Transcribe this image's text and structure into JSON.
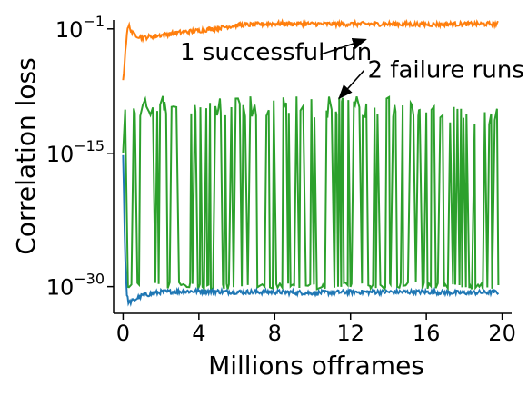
{
  "chart_data": {
    "type": "line",
    "xlabel": "Millions offrames",
    "ylabel": "Correlation loss",
    "xlim": [
      -0.5,
      20.5
    ],
    "yscale": "log",
    "ylim_exp": [
      -33,
      0
    ],
    "x_ticks": [
      {
        "value": 0,
        "label": "0"
      },
      {
        "value": 4,
        "label": "4"
      },
      {
        "value": 8,
        "label": "8"
      },
      {
        "value": 12,
        "label": "12"
      },
      {
        "value": 16,
        "label": "16"
      },
      {
        "value": 20,
        "label": "20"
      }
    ],
    "y_ticks": [
      {
        "exp": -1,
        "base": "10",
        "sup": "−1"
      },
      {
        "exp": -15,
        "base": "10",
        "sup": "−15"
      },
      {
        "exp": -30,
        "base": "10",
        "sup": "−30"
      }
    ],
    "grid": false,
    "series": [
      {
        "color": "#ff7f0e",
        "x": [
          0.0,
          0.1,
          0.2,
          0.3,
          0.5,
          1,
          2,
          3,
          4,
          6,
          8,
          10,
          12,
          14,
          16,
          18,
          19.8
        ],
        "log10_y": [
          -7,
          -4,
          -1.5,
          -0.6,
          -1.5,
          -2.0,
          -1.7,
          -1.4,
          -1.2,
          -0.6,
          -0.4,
          -0.45,
          -0.45,
          -0.45,
          -0.5,
          -0.45,
          -0.45
        ]
      },
      {
        "color": "#1f77b4",
        "x": [
          0.0,
          0.1,
          0.2,
          0.3,
          0.5,
          1,
          2,
          4,
          6,
          8,
          10,
          12,
          14,
          16,
          18,
          19.8
        ],
        "log10_y": [
          -15,
          -26,
          -31,
          -31.8,
          -31.6,
          -31.0,
          -30.6,
          -30.5,
          -30.6,
          -30.6,
          -30.7,
          -30.6,
          -30.6,
          -30.6,
          -30.7,
          -30.6
        ]
      },
      {
        "color": "#2ca02c",
        "x_range": [
          0.0,
          19.8
        ],
        "log10_y_low": -30,
        "log10_y_high": -8.5,
        "oscillating": true
      }
    ],
    "annotations": [
      {
        "text": "1 successful run",
        "x": 3.0,
        "log10_y": -4.5,
        "arrow_to": {
          "x": 12.8,
          "log10_y": -2.2
        }
      },
      {
        "text": "2 failure runs",
        "x": 12.9,
        "log10_y": -6.5,
        "arrow_to": {
          "x": 11.4,
          "log10_y": -8.8
        }
      }
    ]
  }
}
